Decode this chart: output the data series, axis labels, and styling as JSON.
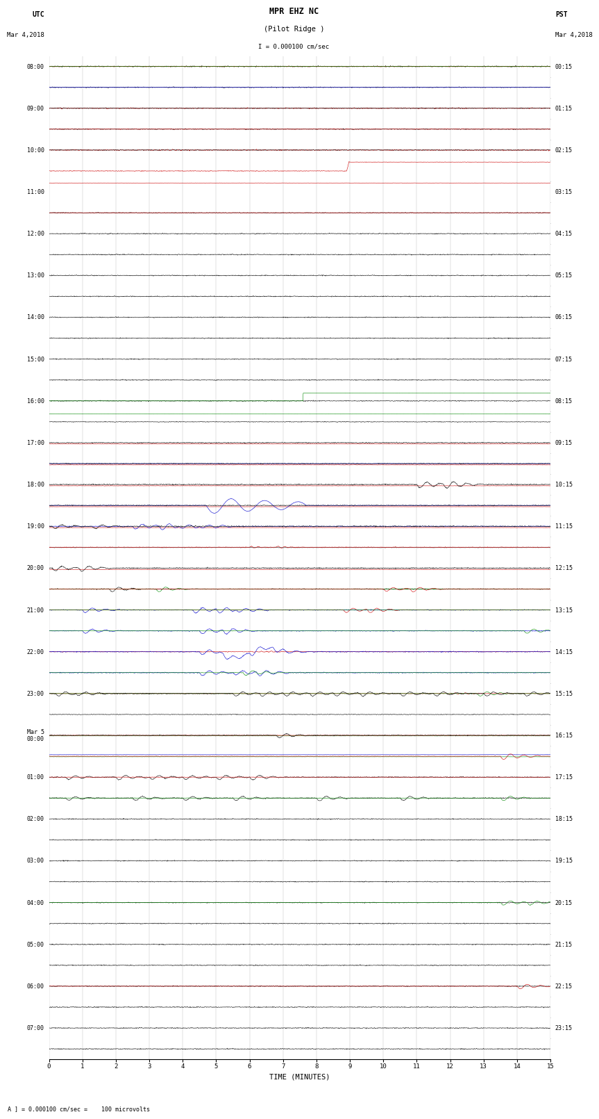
{
  "title_line1": "MPR EHZ NC",
  "title_line2": "(Pilot Ridge )",
  "scale_label": "I = 0.000100 cm/sec",
  "left_header_line1": "UTC",
  "left_header_line2": "Mar 4,2018",
  "right_header_line1": "PST",
  "right_header_line2": "Mar 4,2018",
  "xlabel": "TIME (MINUTES)",
  "footer": "A ] = 0.000100 cm/sec =    100 microvolts",
  "bg_color": "#ffffff",
  "grid_color": "#999999",
  "num_traces": 48,
  "utc_labels": [
    "08:00",
    "",
    "09:00",
    "",
    "10:00",
    "",
    "11:00",
    "",
    "12:00",
    "",
    "13:00",
    "",
    "14:00",
    "",
    "15:00",
    "",
    "16:00",
    "",
    "17:00",
    "",
    "18:00",
    "",
    "19:00",
    "",
    "20:00",
    "",
    "21:00",
    "",
    "22:00",
    "",
    "23:00",
    "",
    "Mar 5\n00:00",
    "",
    "01:00",
    "",
    "02:00",
    "",
    "03:00",
    "",
    "04:00",
    "",
    "05:00",
    "",
    "06:00",
    "",
    "07:00",
    ""
  ],
  "pst_labels": [
    "00:15",
    "",
    "01:15",
    "",
    "02:15",
    "",
    "03:15",
    "",
    "04:15",
    "",
    "05:15",
    "",
    "06:15",
    "",
    "07:15",
    "",
    "08:15",
    "",
    "09:15",
    "",
    "10:15",
    "",
    "11:15",
    "",
    "12:15",
    "",
    "13:15",
    "",
    "14:15",
    "",
    "15:15",
    "",
    "16:15",
    "",
    "17:15",
    "",
    "18:15",
    "",
    "19:15",
    "",
    "20:15",
    "",
    "21:15",
    "",
    "22:15",
    "",
    "23:15",
    ""
  ]
}
